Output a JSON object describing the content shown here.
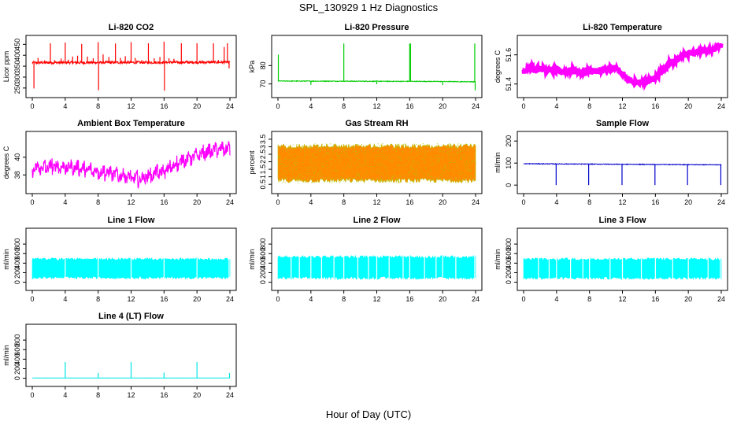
{
  "figure": {
    "title": "SPL_130929  1 Hz Diagnostics",
    "xlabel": "Hour of Day (UTC)"
  },
  "chart_data": [
    {
      "id": "co2",
      "type": "line",
      "title": "Li-820 CO2",
      "ylabel": "Licor ppm",
      "color": "#ff0000",
      "xlim": [
        0,
        24
      ],
      "xticks": [
        0,
        4,
        8,
        12,
        16,
        20,
        24
      ],
      "ylim": [
        235,
        462
      ],
      "yticks": [
        250,
        300,
        350,
        400,
        450
      ],
      "series": [
        {
          "name": "CO2",
          "baseline": 368,
          "noise": 6,
          "trend": [
            [
              0,
              366
            ],
            [
              24,
              368
            ]
          ],
          "spikes": [
            [
              0.2,
              248
            ],
            [
              0.7,
              388
            ],
            [
              1.1,
              372
            ],
            [
              1.5,
              376
            ],
            [
              2.2,
              455
            ],
            [
              2.7,
              378
            ],
            [
              3.5,
              385
            ],
            [
              4.0,
              458
            ],
            [
              4.4,
              380
            ],
            [
              4.9,
              394
            ],
            [
              5.5,
              398
            ],
            [
              6.0,
              452
            ],
            [
              6.7,
              394
            ],
            [
              7.4,
              386
            ],
            [
              8.0,
              460
            ],
            [
              8.05,
              240
            ],
            [
              8.6,
              404
            ],
            [
              9.3,
              392
            ],
            [
              10.1,
              454
            ],
            [
              10.7,
              388
            ],
            [
              11.3,
              396
            ],
            [
              12.0,
              460
            ],
            [
              12.5,
              388
            ],
            [
              13.3,
              378
            ],
            [
              14.1,
              455
            ],
            [
              14.8,
              386
            ],
            [
              15.5,
              392
            ],
            [
              16.0,
              462
            ],
            [
              16.05,
              238
            ],
            [
              16.6,
              386
            ],
            [
              17.2,
              384
            ],
            [
              18.1,
              455
            ],
            [
              18.7,
              376
            ],
            [
              19.5,
              372
            ],
            [
              20.0,
              455
            ],
            [
              20.7,
              376
            ],
            [
              21.3,
              370
            ],
            [
              22.0,
              455
            ],
            [
              22.6,
              378
            ],
            [
              23.3,
              438
            ],
            [
              23.7,
              455
            ],
            [
              23.9,
              340
            ]
          ]
        }
      ]
    },
    {
      "id": "pressure",
      "type": "line",
      "title": "Li-820 Pressure",
      "ylabel": "kPa",
      "color": "#00cc00",
      "xlim": [
        0,
        24
      ],
      "xticks": [
        0,
        4,
        8,
        12,
        16,
        20,
        24
      ],
      "ylim": [
        66,
        93
      ],
      "yticks": [
        70,
        80
      ],
      "series": [
        {
          "name": "Pressure",
          "baseline": 71.5,
          "noise": 0.2,
          "trend": [
            [
              0,
              71.6
            ],
            [
              18,
              71.4
            ],
            [
              24,
              71.2
            ]
          ],
          "spikes": [
            [
              0.05,
              86
            ],
            [
              4.0,
              69.5
            ],
            [
              8.0,
              92
            ],
            [
              12.0,
              69.8
            ],
            [
              16.0,
              92
            ],
            [
              16.1,
              92
            ],
            [
              20.0,
              69.4
            ],
            [
              23.9,
              92
            ],
            [
              23.95,
              66.5
            ]
          ]
        }
      ]
    },
    {
      "id": "licor_temp",
      "type": "line",
      "title": "Li-820 Temperature",
      "ylabel": "degrees C",
      "color": "#ff00ff",
      "xlim": [
        0,
        24
      ],
      "xticks": [
        0,
        4,
        8,
        12,
        16,
        20,
        24
      ],
      "ylim": [
        51.35,
        51.69
      ],
      "yticks": [
        51.4,
        51.6
      ],
      "series": [
        {
          "name": "Temperature",
          "noise": 0.02,
          "trend": [
            [
              0,
              51.48
            ],
            [
              1,
              51.51
            ],
            [
              3,
              51.5
            ],
            [
              5,
              51.48
            ],
            [
              6,
              51.5
            ],
            [
              7,
              51.47
            ],
            [
              8,
              51.49
            ],
            [
              10,
              51.49
            ],
            [
              11,
              51.52
            ],
            [
              12,
              51.47
            ],
            [
              13,
              51.42
            ],
            [
              14,
              51.41
            ],
            [
              15,
              51.42
            ],
            [
              16,
              51.44
            ],
            [
              17,
              51.5
            ],
            [
              18,
              51.55
            ],
            [
              19,
              51.58
            ],
            [
              20,
              51.61
            ],
            [
              21,
              51.62
            ],
            [
              22,
              51.63
            ],
            [
              23,
              51.64
            ],
            [
              24,
              51.66
            ]
          ],
          "spikes": []
        }
      ]
    },
    {
      "id": "box_temp",
      "type": "line",
      "title": "Ambient Box Temperature",
      "ylabel": "degrees C",
      "color": "#ff00ff",
      "xlim": [
        0,
        24
      ],
      "xticks": [
        0,
        4,
        8,
        12,
        16,
        20,
        24
      ],
      "ylim": [
        36.6,
        42.2
      ],
      "yticks": [
        38,
        40
      ],
      "series": [
        {
          "name": "Box Temperature",
          "noise": 0.6,
          "sawtooth": {
            "period": 0.8,
            "amplitude": 1.0
          },
          "trend": [
            [
              0,
              38.7
            ],
            [
              3,
              39.0
            ],
            [
              6,
              38.7
            ],
            [
              9,
              38.3
            ],
            [
              12,
              37.7
            ],
            [
              13,
              37.5
            ],
            [
              14,
              37.9
            ],
            [
              16,
              38.4
            ],
            [
              18,
              39.5
            ],
            [
              20,
              40.2
            ],
            [
              22,
              40.8
            ],
            [
              24,
              41.0
            ]
          ],
          "spikes": []
        }
      ]
    },
    {
      "id": "rh",
      "type": "line",
      "title": "Gas Stream RH",
      "ylabel": "percent",
      "color": "#ff8c00",
      "edge_color": "#bbbb00",
      "xlim": [
        0,
        24
      ],
      "xticks": [
        0,
        4,
        8,
        12,
        16,
        20,
        24
      ],
      "ylim": [
        0.3,
        3.6
      ],
      "yticks": [
        0.5,
        1.0,
        1.5,
        2.0,
        2.5,
        3.0,
        3.5
      ],
      "series": [
        {
          "name": "RH",
          "band": [
            0.6,
            3.2
          ],
          "trend": [
            [
              0,
              1.9
            ],
            [
              24,
              1.9
            ]
          ],
          "spikes": []
        }
      ]
    },
    {
      "id": "sample_flow",
      "type": "line",
      "title": "Sample Flow",
      "ylabel": "ml/min",
      "color": "#0000cc",
      "xlim": [
        0,
        24
      ],
      "xticks": [
        0,
        4,
        8,
        12,
        16,
        20,
        24
      ],
      "ylim": [
        -10,
        215
      ],
      "yticks": [
        0,
        100,
        200
      ],
      "series": [
        {
          "name": "Sample Flow",
          "baseline": 93,
          "noise": 1.5,
          "trend": [
            [
              0,
              97
            ],
            [
              24,
              92
            ]
          ],
          "spikes": [
            [
              3.95,
              0
            ],
            [
              7.9,
              0
            ],
            [
              11.95,
              0
            ],
            [
              15.95,
              0
            ],
            [
              19.9,
              0
            ],
            [
              23.95,
              0
            ]
          ]
        }
      ]
    },
    {
      "id": "line1",
      "type": "line",
      "title": "Line 1 Flow",
      "ylabel": "ml/min",
      "color": "#00ffff",
      "xlim": [
        0,
        24
      ],
      "xticks": [
        0,
        4,
        8,
        12,
        16,
        20,
        24
      ],
      "ylim": [
        -40,
        1000
      ],
      "yticks": [
        0,
        200,
        400,
        600,
        800
      ],
      "series": [
        {
          "name": "Line 1",
          "band": [
            70,
            510
          ],
          "trend": [
            [
              0,
              300
            ],
            [
              24,
              300
            ]
          ],
          "notches": [
            4.0,
            8.0,
            12.0,
            16.0,
            20.0,
            23.9
          ],
          "spikes": []
        }
      ]
    },
    {
      "id": "line2",
      "type": "line",
      "title": "Line 2 Flow",
      "ylabel": "ml/min",
      "color": "#00ffff",
      "xlim": [
        0,
        24
      ],
      "xticks": [
        0,
        4,
        8,
        12,
        16,
        20,
        24
      ],
      "ylim": [
        -40,
        1000
      ],
      "yticks": [
        0,
        200,
        400,
        600,
        800
      ],
      "series": [
        {
          "name": "Line 2",
          "band": [
            60,
            560
          ],
          "trend": [
            [
              0,
              300
            ],
            [
              24,
              300
            ]
          ],
          "notches": [
            1.6,
            2.6,
            4.0,
            5.3,
            6.8,
            8.0,
            9.7,
            11.0,
            12.0,
            13.5,
            15.2,
            16.0,
            17.8,
            19.2,
            20.0,
            21.6,
            23.9
          ],
          "spikes": []
        }
      ]
    },
    {
      "id": "line3",
      "type": "line",
      "title": "Line 3 Flow",
      "ylabel": "ml/min",
      "color": "#00ffff",
      "xlim": [
        0,
        24
      ],
      "xticks": [
        0,
        4,
        8,
        12,
        16,
        20,
        24
      ],
      "ylim": [
        -40,
        1000
      ],
      "yticks": [
        0,
        200,
        400,
        600,
        800
      ],
      "series": [
        {
          "name": "Line 3",
          "band": [
            60,
            510
          ],
          "trend": [
            [
              0,
              300
            ],
            [
              24,
              300
            ]
          ],
          "notches": [
            1.8,
            3.1,
            4.0,
            5.7,
            7.2,
            8.0,
            10.5,
            12.0,
            14.3,
            16.0,
            18.1,
            20.0,
            22.4,
            23.9
          ],
          "spikes": [
            [
              4.0,
              10
            ],
            [
              12.0,
              20
            ],
            [
              16.0,
              25
            ],
            [
              20.0,
              0
            ]
          ]
        }
      ]
    },
    {
      "id": "line4",
      "type": "line",
      "title": "Line 4 (LT) Flow",
      "ylabel": "ml/min",
      "color": "#00e5e5",
      "xlim": [
        0,
        24
      ],
      "xticks": [
        0,
        4,
        8,
        12,
        16,
        20,
        24
      ],
      "ylim": [
        -40,
        1000
      ],
      "yticks": [
        0,
        200,
        400,
        600,
        800
      ],
      "series": [
        {
          "name": "Line 4",
          "baseline": 5,
          "noise": 2,
          "trend": [
            [
              0,
              5
            ],
            [
              24,
              5
            ]
          ],
          "spikes": [
            [
              4.0,
              340
            ],
            [
              8.0,
              110
            ],
            [
              12.0,
              340
            ],
            [
              16.0,
              120
            ],
            [
              20.0,
              340
            ],
            [
              23.95,
              110
            ]
          ]
        }
      ]
    }
  ]
}
